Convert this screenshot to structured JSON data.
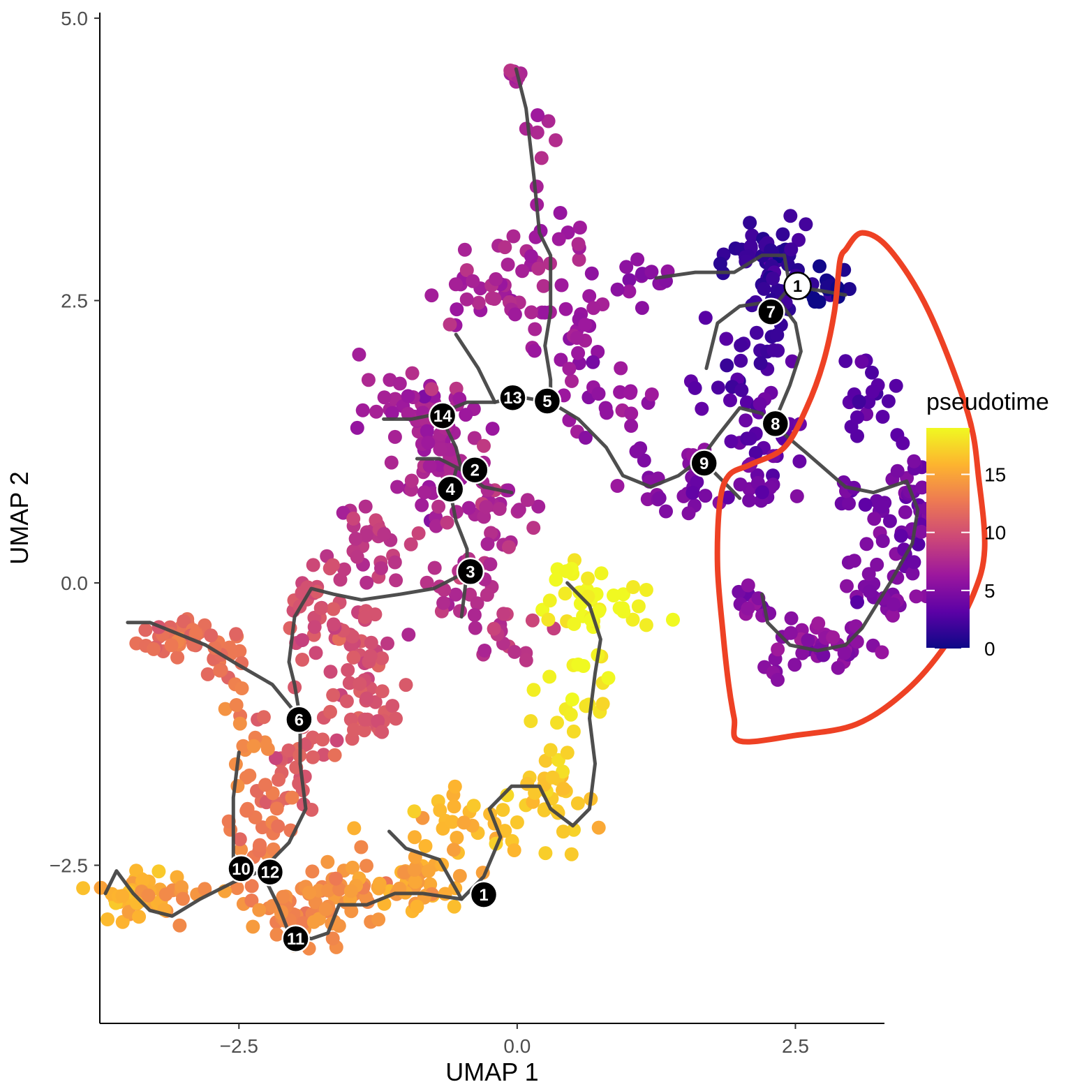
{
  "chart_data": {
    "type": "scatter",
    "title": "",
    "xlabel": "UMAP 1",
    "ylabel": "UMAP 2",
    "xlim": [
      -3.75,
      3.3
    ],
    "ylim": [
      -3.9,
      5.05
    ],
    "xticks": [
      -2.5,
      0.0,
      2.5
    ],
    "yticks": [
      -2.5,
      0.0,
      2.5,
      5.0
    ],
    "xtick_labels": [
      "−2.5",
      "0.0",
      "2.5"
    ],
    "ytick_labels": [
      "−2.5",
      "0.0",
      "2.5",
      "5.0"
    ],
    "grid": false,
    "color_scale": {
      "name": "pseudotime",
      "range": [
        0,
        19
      ],
      "ticks": [
        0,
        5,
        10,
        15
      ],
      "tick_labels": [
        "0",
        "5",
        "10",
        "15"
      ],
      "stops": [
        "#0d0887",
        "#5c01a6",
        "#9c179e",
        "#cc4778",
        "#ed7953",
        "#fdb42f",
        "#f0f921"
      ]
    },
    "point_clusters": [
      {
        "center": [
          -0.02,
          4.5
        ],
        "spread": [
          0.06,
          0.05
        ],
        "n": 10,
        "pseudotime": 7.5
      },
      {
        "center": [
          0.2,
          3.9
        ],
        "spread": [
          0.12,
          0.35
        ],
        "n": 8,
        "pseudotime": 7.5
      },
      {
        "center": [
          0.25,
          3.0
        ],
        "spread": [
          0.35,
          0.3
        ],
        "n": 20,
        "pseudotime": 7.0
      },
      {
        "center": [
          -0.3,
          2.5
        ],
        "spread": [
          0.45,
          0.3
        ],
        "n": 30,
        "pseudotime": 7.0
      },
      {
        "center": [
          0.45,
          2.2
        ],
        "spread": [
          0.35,
          0.3
        ],
        "n": 25,
        "pseudotime": 6.5
      },
      {
        "center": [
          -0.85,
          1.55
        ],
        "spread": [
          0.45,
          0.35
        ],
        "n": 45,
        "pseudotime": 7.0
      },
      {
        "center": [
          -0.65,
          1.0
        ],
        "spread": [
          0.35,
          0.35
        ],
        "n": 40,
        "pseudotime": 7.0
      },
      {
        "center": [
          -0.2,
          0.65
        ],
        "spread": [
          0.4,
          0.3
        ],
        "n": 30,
        "pseudotime": 7.5
      },
      {
        "center": [
          0.8,
          1.55
        ],
        "spread": [
          0.35,
          0.3
        ],
        "n": 20,
        "pseudotime": 6.0
      },
      {
        "center": [
          1.1,
          2.75
        ],
        "spread": [
          0.35,
          0.25
        ],
        "n": 15,
        "pseudotime": 5.5
      },
      {
        "center": [
          1.3,
          0.9
        ],
        "spread": [
          0.4,
          0.3
        ],
        "n": 20,
        "pseudotime": 5.0
      },
      {
        "center": [
          -1.4,
          0.3
        ],
        "spread": [
          0.35,
          0.3
        ],
        "n": 30,
        "pseudotime": 8.5
      },
      {
        "center": [
          -0.5,
          0.0
        ],
        "spread": [
          0.35,
          0.3
        ],
        "n": 25,
        "pseudotime": 8.0
      },
      {
        "center": [
          -0.1,
          -0.35
        ],
        "spread": [
          0.3,
          0.25
        ],
        "n": 15,
        "pseudotime": 8.5
      },
      {
        "center": [
          -1.5,
          -0.55
        ],
        "spread": [
          0.35,
          0.35
        ],
        "n": 35,
        "pseudotime": 10.0
      },
      {
        "center": [
          -1.9,
          -0.15
        ],
        "spread": [
          0.25,
          0.35
        ],
        "n": 25,
        "pseudotime": 10.0
      },
      {
        "center": [
          -1.3,
          -1.2
        ],
        "spread": [
          0.35,
          0.3
        ],
        "n": 30,
        "pseudotime": 10.5
      },
      {
        "center": [
          -2.0,
          -1.5
        ],
        "spread": [
          0.35,
          0.45
        ],
        "n": 30,
        "pseudotime": 11.0
      },
      {
        "center": [
          -3.05,
          -0.45
        ],
        "spread": [
          0.25,
          0.12
        ],
        "n": 30,
        "pseudotime": 12.0
      },
      {
        "center": [
          -2.65,
          -0.65
        ],
        "spread": [
          0.2,
          0.3
        ],
        "n": 20,
        "pseudotime": 12.0
      },
      {
        "center": [
          -2.45,
          -1.5
        ],
        "spread": [
          0.15,
          0.4
        ],
        "n": 15,
        "pseudotime": 13.0
      },
      {
        "center": [
          -2.3,
          -2.1
        ],
        "spread": [
          0.25,
          0.3
        ],
        "n": 25,
        "pseudotime": 12.5
      },
      {
        "center": [
          -2.05,
          -2.9
        ],
        "spread": [
          0.35,
          0.25
        ],
        "n": 45,
        "pseudotime": 13.5
      },
      {
        "center": [
          -1.55,
          -2.75
        ],
        "spread": [
          0.3,
          0.3
        ],
        "n": 35,
        "pseudotime": 14.0
      },
      {
        "center": [
          -3.45,
          -2.75
        ],
        "spread": [
          0.25,
          0.2
        ],
        "n": 40,
        "pseudotime": 15.5
      },
      {
        "center": [
          -2.95,
          -2.75
        ],
        "spread": [
          0.3,
          0.15
        ],
        "n": 12,
        "pseudotime": 14.0
      },
      {
        "center": [
          -0.9,
          -2.7
        ],
        "spread": [
          0.35,
          0.2
        ],
        "n": 35,
        "pseudotime": 15.0
      },
      {
        "center": [
          -0.45,
          -2.2
        ],
        "spread": [
          0.45,
          0.3
        ],
        "n": 35,
        "pseudotime": 16.0
      },
      {
        "center": [
          0.3,
          -1.9
        ],
        "spread": [
          0.3,
          0.35
        ],
        "n": 30,
        "pseudotime": 17.0
      },
      {
        "center": [
          0.55,
          -1.0
        ],
        "spread": [
          0.3,
          0.4
        ],
        "n": 20,
        "pseudotime": 18.0
      },
      {
        "center": [
          0.55,
          -0.15
        ],
        "spread": [
          0.3,
          0.4
        ],
        "n": 30,
        "pseudotime": 19.0
      },
      {
        "center": [
          1.1,
          -0.2
        ],
        "spread": [
          0.3,
          0.3
        ],
        "n": 8,
        "pseudotime": 19.0
      },
      {
        "center": [
          2.3,
          2.9
        ],
        "spread": [
          0.3,
          0.2
        ],
        "n": 35,
        "pseudotime": 1.5
      },
      {
        "center": [
          2.35,
          2.5
        ],
        "spread": [
          0.3,
          0.25
        ],
        "n": 30,
        "pseudotime": 1.5
      },
      {
        "center": [
          2.8,
          2.6
        ],
        "spread": [
          0.15,
          0.15
        ],
        "n": 15,
        "pseudotime": 0.3
      },
      {
        "center": [
          2.0,
          1.95
        ],
        "spread": [
          0.3,
          0.3
        ],
        "n": 25,
        "pseudotime": 2.5
      },
      {
        "center": [
          2.2,
          1.35
        ],
        "spread": [
          0.3,
          0.25
        ],
        "n": 25,
        "pseudotime": 3.5
      },
      {
        "center": [
          3.2,
          1.65
        ],
        "spread": [
          0.3,
          0.35
        ],
        "n": 20,
        "pseudotime": 3.0
      },
      {
        "center": [
          2.0,
          0.8
        ],
        "spread": [
          0.3,
          0.2
        ],
        "n": 20,
        "pseudotime": 4.0
      },
      {
        "center": [
          3.55,
          0.65
        ],
        "spread": [
          0.25,
          0.35
        ],
        "n": 40,
        "pseudotime": 4.0
      },
      {
        "center": [
          3.05,
          0.8
        ],
        "spread": [
          0.25,
          0.15
        ],
        "n": 15,
        "pseudotime": 4.0
      },
      {
        "center": [
          3.3,
          -0.1
        ],
        "spread": [
          0.3,
          0.35
        ],
        "n": 35,
        "pseudotime": 5.0
      },
      {
        "center": [
          2.7,
          -0.55
        ],
        "spread": [
          0.4,
          0.2
        ],
        "n": 30,
        "pseudotime": 5.5
      },
      {
        "center": [
          2.15,
          -0.15
        ],
        "spread": [
          0.15,
          0.2
        ],
        "n": 12,
        "pseudotime": 5.5
      },
      {
        "center": [
          2.25,
          -0.8
        ],
        "spread": [
          0.15,
          0.1
        ],
        "n": 4,
        "pseudotime": 5.0
      }
    ],
    "trajectory_segments": [
      [
        [
          -0.01,
          4.55
        ],
        [
          0.08,
          4.2
        ],
        [
          0.15,
          3.6
        ],
        [
          0.2,
          3.1
        ],
        [
          0.3,
          2.9
        ],
        [
          0.3,
          2.4
        ],
        [
          0.25,
          2.1
        ],
        [
          0.3,
          1.8
        ],
        [
          0.3,
          1.6
        ]
      ],
      [
        [
          0.3,
          1.6
        ],
        [
          0.55,
          1.45
        ],
        [
          0.8,
          1.2
        ],
        [
          0.95,
          0.95
        ],
        [
          1.2,
          0.85
        ],
        [
          1.45,
          0.95
        ],
        [
          1.65,
          1.1
        ],
        [
          1.8,
          1.3
        ],
        [
          2.0,
          1.55
        ],
        [
          2.2,
          1.5
        ],
        [
          2.3,
          1.4
        ]
      ],
      [
        [
          2.3,
          1.4
        ],
        [
          2.6,
          1.15
        ],
        [
          2.95,
          0.85
        ],
        [
          3.2,
          0.8
        ],
        [
          3.5,
          0.9
        ],
        [
          3.6,
          0.65
        ],
        [
          3.55,
          0.35
        ],
        [
          3.35,
          0.0
        ],
        [
          3.1,
          -0.4
        ],
        [
          2.95,
          -0.55
        ],
        [
          2.7,
          -0.6
        ],
        [
          2.45,
          -0.55
        ],
        [
          2.25,
          -0.35
        ],
        [
          2.2,
          -0.1
        ]
      ],
      [
        [
          2.3,
          1.4
        ],
        [
          2.45,
          1.75
        ],
        [
          2.55,
          2.05
        ],
        [
          2.5,
          2.3
        ],
        [
          2.35,
          2.5
        ],
        [
          2.45,
          2.62
        ],
        [
          2.65,
          2.6
        ],
        [
          2.95,
          2.55
        ]
      ],
      [
        [
          2.45,
          2.62
        ],
        [
          2.4,
          2.9
        ],
        [
          2.2,
          2.9
        ],
        [
          1.95,
          2.75
        ],
        [
          1.6,
          2.75
        ],
        [
          1.25,
          2.7
        ]
      ],
      [
        [
          2.35,
          2.5
        ],
        [
          2.0,
          2.45
        ],
        [
          1.8,
          2.3
        ],
        [
          1.7,
          1.9
        ]
      ],
      [
        [
          1.65,
          1.1
        ],
        [
          1.9,
          0.85
        ],
        [
          2.0,
          0.75
        ]
      ],
      [
        [
          0.3,
          1.6
        ],
        [
          0.0,
          1.65
        ],
        [
          -0.2,
          1.6
        ],
        [
          -0.45,
          1.6
        ],
        [
          -0.7,
          1.5
        ],
        [
          -0.95,
          1.45
        ],
        [
          -1.2,
          1.45
        ]
      ],
      [
        [
          -0.2,
          1.6
        ],
        [
          -0.35,
          1.9
        ],
        [
          -0.55,
          2.2
        ]
      ],
      [
        [
          -0.7,
          1.5
        ],
        [
          -0.55,
          1.2
        ],
        [
          -0.5,
          1.0
        ],
        [
          -0.3,
          0.85
        ],
        [
          -0.05,
          0.8
        ]
      ],
      [
        [
          -0.5,
          1.0
        ],
        [
          -0.7,
          1.1
        ],
        [
          -0.9,
          1.1
        ]
      ],
      [
        [
          -0.55,
          1.0
        ],
        [
          -0.6,
          0.8
        ],
        [
          -0.55,
          0.55
        ],
        [
          -0.45,
          0.3
        ],
        [
          -0.45,
          0.1
        ],
        [
          -0.5,
          -0.3
        ]
      ],
      [
        [
          -0.45,
          0.1
        ],
        [
          -0.75,
          -0.05
        ],
        [
          -1.05,
          -0.1
        ],
        [
          -1.4,
          -0.15
        ],
        [
          -1.65,
          -0.1
        ],
        [
          -1.85,
          -0.05
        ],
        [
          -2.0,
          -0.3
        ],
        [
          -2.05,
          -0.7
        ],
        [
          -2.0,
          -0.9
        ],
        [
          -1.95,
          -1.2
        ]
      ],
      [
        [
          -1.95,
          -1.2
        ],
        [
          -2.2,
          -0.9
        ],
        [
          -2.55,
          -0.7
        ],
        [
          -2.8,
          -0.55
        ],
        [
          -3.05,
          -0.45
        ],
        [
          -3.3,
          -0.35
        ],
        [
          -3.5,
          -0.35
        ]
      ],
      [
        [
          -1.95,
          -1.2
        ],
        [
          -1.95,
          -1.6
        ],
        [
          -1.9,
          -2.0
        ],
        [
          -2.05,
          -2.3
        ],
        [
          -2.3,
          -2.55
        ],
        [
          -2.55,
          -2.65
        ],
        [
          -2.85,
          -2.8
        ],
        [
          -3.1,
          -2.95
        ],
        [
          -3.3,
          -2.9
        ],
        [
          -3.45,
          -2.75
        ],
        [
          -3.6,
          -2.55
        ],
        [
          -3.7,
          -2.75
        ]
      ],
      [
        [
          -2.5,
          -1.5
        ],
        [
          -2.55,
          -1.9
        ],
        [
          -2.55,
          -2.55
        ]
      ],
      [
        [
          -2.3,
          -2.55
        ],
        [
          -2.15,
          -2.85
        ],
        [
          -2.05,
          -3.1
        ],
        [
          -1.85,
          -3.15
        ],
        [
          -1.7,
          -3.1
        ],
        [
          -1.6,
          -2.85
        ],
        [
          -1.35,
          -2.85
        ],
        [
          -1.1,
          -2.75
        ],
        [
          -0.85,
          -2.75
        ],
        [
          -0.5,
          -2.8
        ]
      ],
      [
        [
          -0.5,
          -2.8
        ],
        [
          -0.7,
          -2.45
        ],
        [
          -1.0,
          -2.35
        ],
        [
          -1.15,
          -2.2
        ]
      ],
      [
        [
          -0.5,
          -2.8
        ],
        [
          -0.3,
          -2.6
        ],
        [
          -0.15,
          -2.25
        ],
        [
          -0.25,
          -2.0
        ],
        [
          -0.05,
          -1.8
        ],
        [
          0.2,
          -1.8
        ],
        [
          0.3,
          -2.0
        ],
        [
          0.5,
          -2.15
        ],
        [
          0.65,
          -2.0
        ],
        [
          0.7,
          -1.6
        ],
        [
          0.65,
          -1.2
        ],
        [
          0.7,
          -0.8
        ],
        [
          0.75,
          -0.5
        ],
        [
          0.65,
          -0.2
        ],
        [
          0.45,
          0.0
        ]
      ]
    ],
    "nodes": [
      {
        "label": "1",
        "x": -0.3,
        "y": -2.76,
        "style": "black"
      },
      {
        "label": "2",
        "x": -0.38,
        "y": 1.0,
        "style": "black"
      },
      {
        "label": "3",
        "x": -0.42,
        "y": 0.1,
        "style": "black"
      },
      {
        "label": "4",
        "x": -0.6,
        "y": 0.83,
        "style": "black"
      },
      {
        "label": "5",
        "x": 0.27,
        "y": 1.61,
        "style": "black"
      },
      {
        "label": "6",
        "x": -1.96,
        "y": -1.21,
        "style": "black"
      },
      {
        "label": "7",
        "x": 2.28,
        "y": 2.4,
        "style": "black"
      },
      {
        "label": "8",
        "x": 2.32,
        "y": 1.41,
        "style": "black"
      },
      {
        "label": "9",
        "x": 1.68,
        "y": 1.06,
        "style": "black"
      },
      {
        "label": "10",
        "x": -2.48,
        "y": -2.53,
        "style": "black"
      },
      {
        "label": "11",
        "x": -1.99,
        "y": -3.15,
        "style": "black"
      },
      {
        "label": "12",
        "x": -2.22,
        "y": -2.56,
        "style": "black"
      },
      {
        "label": "13",
        "x": -0.04,
        "y": 1.64,
        "style": "black"
      },
      {
        "label": "14",
        "x": -0.67,
        "y": 1.48,
        "style": "black"
      },
      {
        "label": "1",
        "x": 2.52,
        "y": 2.63,
        "style": "white"
      }
    ],
    "annotation_loop": [
      [
        2.95,
        2.95
      ],
      [
        3.1,
        3.1
      ],
      [
        3.35,
        2.95
      ],
      [
        3.7,
        2.4
      ],
      [
        4.05,
        1.5
      ],
      [
        4.15,
        0.9
      ],
      [
        4.2,
        0.3
      ],
      [
        4.1,
        -0.1
      ],
      [
        3.85,
        -0.55
      ],
      [
        3.5,
        -0.95
      ],
      [
        3.05,
        -1.25
      ],
      [
        2.5,
        -1.35
      ],
      [
        2.0,
        -1.4
      ],
      [
        1.95,
        -1.2
      ],
      [
        1.9,
        -0.9
      ],
      [
        1.85,
        -0.45
      ],
      [
        1.8,
        0.15
      ],
      [
        1.82,
        0.7
      ],
      [
        1.9,
        0.95
      ],
      [
        2.1,
        1.05
      ],
      [
        2.4,
        1.2
      ],
      [
        2.6,
        1.55
      ],
      [
        2.75,
        1.95
      ],
      [
        2.85,
        2.4
      ],
      [
        2.9,
        2.85
      ],
      [
        2.95,
        2.95
      ]
    ]
  }
}
